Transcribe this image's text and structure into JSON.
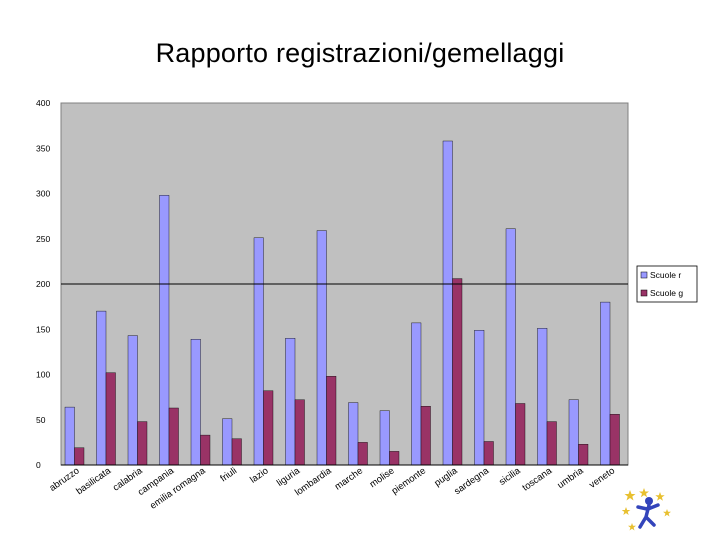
{
  "slide": {
    "title": "Rapporto registrazioni/gemellaggi"
  },
  "chart_data": {
    "type": "bar",
    "title": "Rapporto registrazioni/gemellaggi",
    "categories": [
      "abruzzo",
      "basilicata",
      "calabria",
      "campania",
      "emilia romagna",
      "friuli",
      "lazio",
      "liguria",
      "lombardia",
      "marche",
      "molise",
      "piemonte",
      "puglia",
      "sardegna",
      "sicilia",
      "toscana",
      "umbria",
      "veneto"
    ],
    "series": [
      {
        "name": "Scuole r",
        "color": "#9999ff",
        "values": [
          64,
          170,
          143,
          298,
          139,
          51,
          251,
          140,
          259,
          69,
          60,
          157,
          358,
          149,
          261,
          151,
          72,
          180
        ]
      },
      {
        "name": "Scuole g",
        "color": "#993366",
        "values": [
          19,
          102,
          48,
          63,
          33,
          29,
          82,
          72,
          98,
          25,
          15,
          65,
          206,
          26,
          68,
          48,
          23,
          56
        ]
      }
    ],
    "ylim": [
      0,
      400
    ],
    "yticks": [
      0,
      50,
      100,
      150,
      200,
      250,
      300,
      350,
      400
    ],
    "reference_line": 200,
    "plot_background": "#c0c0c0",
    "legend_position": "right"
  }
}
